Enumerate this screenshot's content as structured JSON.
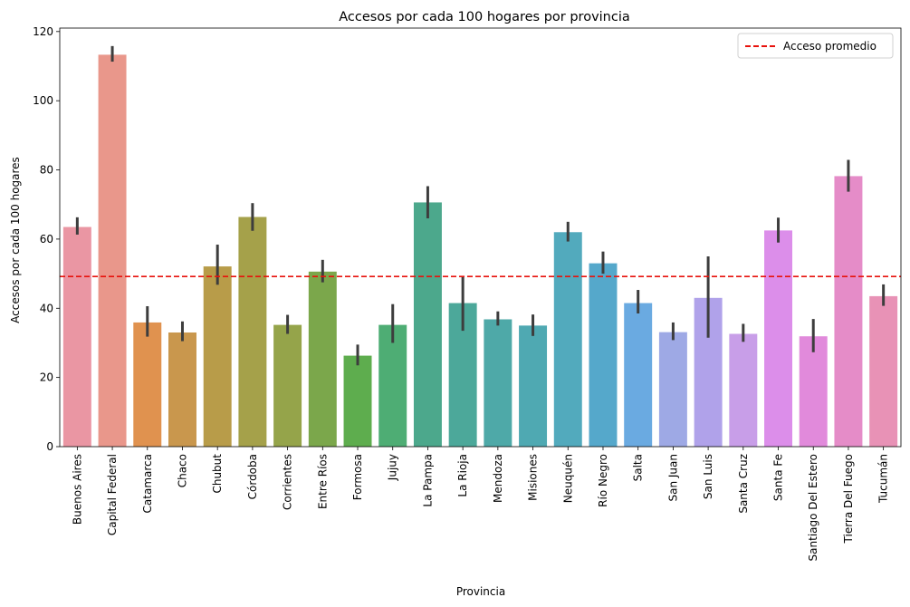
{
  "chart_data": {
    "type": "bar",
    "title": "Accesos por cada 100 hogares por provincia",
    "xlabel": "Provincia",
    "ylabel": "Accesos por cada 100 hogares",
    "ylim": [
      0,
      121
    ],
    "yticks": [
      0,
      20,
      40,
      60,
      80,
      100,
      120
    ],
    "grid": false,
    "legend_position": "top-right",
    "categories": [
      "Buenos Aires",
      "Capital Federal",
      "Catamarca",
      "Chaco",
      "Chubut",
      "Córdoba",
      "Corrientes",
      "Entre Ríos",
      "Formosa",
      "Jujuy",
      "La Pampa",
      "La Rioja",
      "Mendoza",
      "Misiones",
      "Neuquén",
      "Río Negro",
      "Salta",
      "San Juan",
      "San Luis",
      "Santa Cruz",
      "Santa Fe",
      "Santiago Del Estero",
      "Tierra Del Fuego",
      "Tucumán"
    ],
    "values": [
      63.5,
      113.3,
      35.9,
      33.0,
      52.1,
      66.4,
      35.2,
      50.6,
      26.3,
      35.2,
      70.6,
      41.5,
      36.8,
      35.0,
      62.0,
      53.0,
      41.5,
      33.1,
      43.0,
      32.6,
      62.5,
      31.9,
      78.2,
      43.5
    ],
    "error_low": [
      61.3,
      111.3,
      31.8,
      30.5,
      46.8,
      62.4,
      32.6,
      47.5,
      23.5,
      30.0,
      66.0,
      33.5,
      35.0,
      32.0,
      59.3,
      50.0,
      38.5,
      30.8,
      31.5,
      30.3,
      59.0,
      27.3,
      73.7,
      40.7
    ],
    "error_high": [
      66.3,
      115.8,
      40.6,
      36.2,
      58.4,
      70.4,
      38.1,
      54.0,
      29.5,
      41.2,
      75.3,
      49.1,
      39.1,
      38.2,
      65.0,
      56.4,
      45.3,
      35.9,
      55.0,
      35.5,
      66.2,
      36.9,
      82.9,
      46.9
    ],
    "colors": [
      "#ea96a3",
      "#e9978b",
      "#e0924f",
      "#c9974d",
      "#b89c49",
      "#a5a14a",
      "#95a44a",
      "#7ba74b",
      "#5ead4e",
      "#4ead74",
      "#4ca88c",
      "#4ca89a",
      "#4ea9a8",
      "#4fa9b2",
      "#52aabd",
      "#55a8cb",
      "#6aaae1",
      "#9ea9e5",
      "#b0a2ea",
      "#c89ee8",
      "#dc8eea",
      "#e18adb",
      "#e58cc8",
      "#e892b6"
    ],
    "reference_line": {
      "label": "Acceso promedio",
      "value": 49.2,
      "color": "#e8120c"
    }
  }
}
